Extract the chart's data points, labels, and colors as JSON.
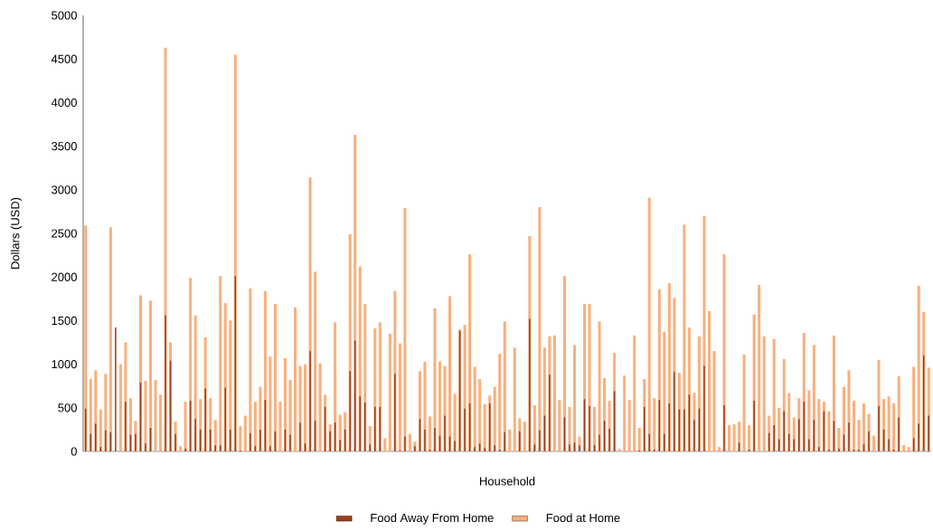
{
  "chart_data": {
    "type": "bar",
    "xlabel": "Household",
    "ylabel": "Dollars (USD)",
    "categories": [
      null,
      null,
      null,
      null,
      null,
      null,
      null,
      null,
      null,
      null,
      null,
      null,
      null,
      null,
      null,
      null,
      null,
      null,
      null,
      null,
      null,
      null,
      null,
      null,
      null,
      null,
      null,
      null,
      null,
      null,
      null,
      null,
      null,
      null,
      null,
      null,
      null,
      null,
      null,
      null,
      null,
      null,
      null,
      null,
      null,
      null,
      null,
      null,
      null,
      null,
      null,
      null,
      null,
      null,
      null,
      null,
      null,
      null,
      null,
      null,
      null,
      null,
      null,
      null,
      null,
      null,
      null,
      null,
      null,
      null,
      null,
      null,
      null,
      null,
      null,
      null,
      null,
      null,
      null,
      null,
      null,
      null,
      null,
      null,
      null,
      null,
      null,
      null,
      null,
      null,
      null,
      null,
      null,
      null,
      null,
      null,
      null,
      null,
      null,
      null,
      null,
      null,
      null,
      null,
      null,
      null,
      null,
      null,
      null,
      null,
      null,
      null,
      null,
      null,
      null,
      null,
      null,
      null,
      null,
      null,
      null,
      null,
      null,
      null,
      null,
      null,
      null,
      null,
      null,
      null,
      null,
      null,
      null,
      null,
      null,
      null,
      null,
      null,
      null,
      null,
      null,
      null,
      null,
      null,
      null,
      null,
      null,
      null,
      null,
      null,
      null,
      null,
      null,
      null,
      null,
      null,
      null,
      null,
      null,
      null,
      null,
      null,
      null,
      null,
      null,
      null,
      null,
      null,
      null,
      null
    ],
    "series": [
      {
        "name": "Food Away From Home",
        "color": "#9c3d1c",
        "values": [
          490,
          200,
          320,
          50,
          240,
          220,
          1420,
          0,
          570,
          190,
          200,
          790,
          90,
          270,
          0,
          0,
          1560,
          1040,
          200,
          0,
          30,
          580,
          370,
          250,
          720,
          250,
          70,
          70,
          730,
          250,
          2010,
          10,
          0,
          210,
          60,
          250,
          590,
          60,
          230,
          0,
          250,
          190,
          0,
          330,
          90,
          1150,
          350,
          0,
          510,
          230,
          330,
          130,
          250,
          920,
          1270,
          630,
          560,
          80,
          510,
          510,
          0,
          0,
          890,
          10,
          170,
          0,
          60,
          370,
          250,
          20,
          270,
          180,
          410,
          170,
          120,
          1380,
          490,
          550,
          50,
          90,
          40,
          550,
          70,
          20,
          220,
          0,
          0,
          230,
          0,
          1520,
          80,
          240,
          410,
          880,
          0,
          0,
          390,
          80,
          100,
          70,
          600,
          520,
          70,
          190,
          350,
          260,
          690,
          0,
          0,
          0,
          0,
          10,
          510,
          200,
          20,
          590,
          200,
          550,
          910,
          480,
          480,
          650,
          360,
          490,
          980,
          0,
          0,
          0,
          530,
          0,
          0,
          100,
          0,
          20,
          580,
          0,
          0,
          210,
          300,
          140,
          460,
          200,
          140,
          370,
          570,
          140,
          360,
          50,
          460,
          20,
          350,
          30,
          190,
          330,
          20,
          20,
          80,
          230,
          0,
          520,
          250,
          140,
          20,
          390,
          0,
          0,
          150,
          320,
          1100,
          410
        ]
      },
      {
        "name": "Food at Home",
        "color": "#f8b07e",
        "values": [
          2590,
          830,
          930,
          480,
          890,
          2570,
          null,
          1000,
          1250,
          610,
          350,
          1790,
          810,
          1730,
          820,
          650,
          4630,
          1250,
          340,
          60,
          570,
          1990,
          1560,
          600,
          1310,
          610,
          360,
          2010,
          1700,
          1500,
          4550,
          290,
          410,
          1870,
          570,
          740,
          1840,
          1090,
          1690,
          570,
          1070,
          820,
          1650,
          980,
          1000,
          3140,
          2060,
          1010,
          650,
          310,
          1480,
          420,
          450,
          2490,
          3630,
          2120,
          1690,
          290,
          1410,
          1480,
          150,
          1350,
          1840,
          1240,
          2790,
          200,
          110,
          920,
          1030,
          400,
          1640,
          1030,
          980,
          1780,
          660,
          1400,
          1450,
          2260,
          970,
          830,
          540,
          640,
          740,
          1120,
          1490,
          250,
          1190,
          380,
          340,
          2470,
          530,
          2800,
          1190,
          1320,
          1330,
          590,
          2010,
          510,
          1220,
          170,
          1690,
          1690,
          510,
          1490,
          840,
          580,
          1130,
          30,
          870,
          590,
          1330,
          270,
          830,
          2910,
          610,
          1860,
          1370,
          1930,
          1760,
          900,
          2600,
          1420,
          670,
          1320,
          2700,
          1610,
          1150,
          50,
          2260,
          300,
          310,
          340,
          1110,
          300,
          1570,
          1910,
          1320,
          410,
          1290,
          500,
          1060,
          670,
          390,
          610,
          1360,
          700,
          1220,
          600,
          570,
          460,
          1330,
          270,
          740,
          930,
          580,
          360,
          550,
          430,
          180,
          1050,
          600,
          630,
          550,
          860,
          70,
          50,
          970,
          1900,
          1600,
          960
        ]
      }
    ],
    "ylim": [
      0,
      5000
    ],
    "yticks": [
      0,
      500,
      1000,
      1500,
      2000,
      2500,
      3000,
      3500,
      4000,
      4500,
      5000
    ],
    "legend": "bottom"
  }
}
